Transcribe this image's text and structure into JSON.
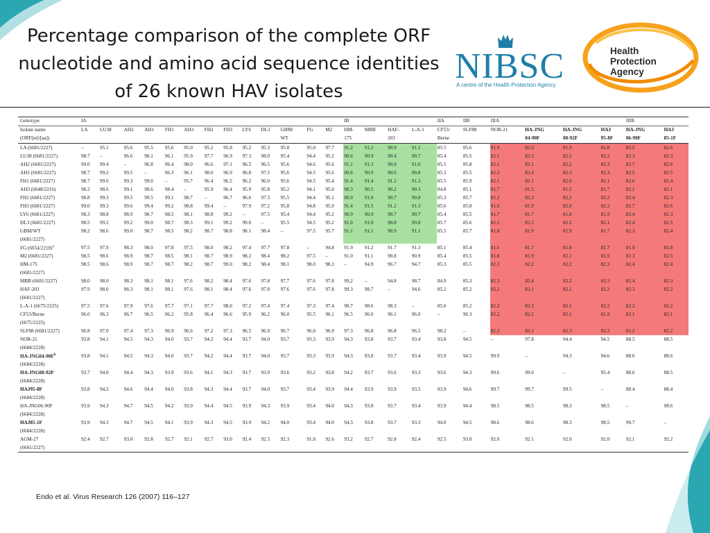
{
  "slide": {
    "title": "Percentage comparison of the complete ORF nucleotide and amino acid sequence identities of 26 known HAV isolates",
    "credit": "Endo et al. Virus Research 126 (2007) 116–127"
  },
  "logos": {
    "nibsc": {
      "word": "NIBSC",
      "tagline": "A centre of the Health Protection Agency"
    },
    "hpa": {
      "line1": "Health",
      "line2": "Protection",
      "line3": "Agency"
    }
  },
  "colors": {
    "green": "#a8e0a0",
    "red": "#f47a7a",
    "nibsc_blue": "#1e7fa8",
    "teal": "#2aa7b0"
  },
  "table": {
    "genotype_label": "Genotype",
    "isolate_label": "Isolate name",
    "orf_label": "(ORF[nt]/[aa])",
    "groups": [
      "IA",
      "IB",
      "IIA",
      "IIB",
      "IIIA",
      "IIIB"
    ],
    "cols": [
      "LA",
      "LU38",
      "AH2",
      "AH1",
      "FH1",
      "AH3",
      "FH2",
      "FH3",
      "LY6",
      "DL3",
      "GBM/",
      "FG",
      "M2",
      "HM-",
      "MBB",
      "HAF-",
      "L-A-1",
      "CF53/",
      "SLF88",
      "NOR-21",
      "HA-JNG",
      "HA-JNG",
      "HAJ",
      "HA-JNG",
      "HAJ"
    ],
    "cols2": [
      "",
      "",
      "",
      "",
      "",
      "",
      "",
      "",
      "",
      "",
      "WT",
      "",
      "",
      "175",
      "",
      "203",
      "",
      "Berne",
      "",
      "",
      "04-90F",
      "08-92F",
      "95-8F",
      "06-90F",
      "85-1F"
    ],
    "rows": [
      {
        "name": "LA (6681/2227)",
        "sub": "",
        "v": [
          "–",
          "95.1",
          "95.6",
          "95.5",
          "95.6",
          "95.0",
          "95.2",
          "95.8",
          "95.2",
          "95.3",
          "95.8",
          "95.0",
          "97.7",
          "91.2",
          "91.2",
          "90.9",
          "91.1",
          "85.5",
          "85.6",
          "81.9",
          "82.0",
          "81.9",
          "81.8",
          "82.5",
          "82.6"
        ]
      },
      {
        "name": "LU38 (6681/2227)",
        "sub": "",
        "v": [
          "98.7",
          "–",
          "96.6",
          "98.1",
          "96.1",
          "95.9",
          "97.7",
          "96.9",
          "97.3",
          "98.0",
          "95.4",
          "94.4",
          "95.2",
          "90.6",
          "90.9",
          "90.4",
          "90.7",
          "85.4",
          "85.5",
          "82.1",
          "82.3",
          "82.2",
          "82.2",
          "82.3",
          "82.3"
        ]
      },
      {
        "name": "AH2 (6681/2227)",
        "sub": "",
        "v": [
          "99.0",
          "99.4",
          "–",
          "96.8",
          "96.4",
          "98.0",
          "96.6",
          "97.1",
          "96.5",
          "96.5",
          "95.6",
          "94.6",
          "95.6",
          "91.1",
          "91.3",
          "90.9",
          "91.0",
          "85.5",
          "85.8",
          "82.1",
          "82.1",
          "82.2",
          "82.3",
          "82.7",
          "82.6"
        ]
      },
      {
        "name": "AH1 (6681/2227)",
        "sub": "",
        "v": [
          "98.7",
          "99.2",
          "99.5",
          "–",
          "96.3",
          "96.1",
          "98.0",
          "96.9",
          "96.8",
          "97.5",
          "95.6",
          "94.5",
          "95.6",
          "90.8",
          "90.9",
          "90.6",
          "90.8",
          "85.3",
          "85.5",
          "82.2",
          "82.4",
          "82.3",
          "82.3",
          "82.5",
          "82.5"
        ]
      },
      {
        "name": "FH1 (6681/2227)",
        "sub": "",
        "v": [
          "98.7",
          "99.0",
          "99.3",
          "99.0",
          "–",
          "95.7",
          "96.4",
          "96.5",
          "96.2",
          "96.0",
          "95.6",
          "94.5",
          "95.4",
          "91.4",
          "91.4",
          "91.2",
          "91.3",
          "85.5",
          "85.9",
          "82.1",
          "82.1",
          "82.0",
          "82.1",
          "82.6",
          "82.4"
        ]
      },
      {
        "name": "AH3 (6648/2216)",
        "sub": "",
        "v": [
          "98.2",
          "98.6",
          "99.1",
          "98.6",
          "98.4",
          "–",
          "95.9",
          "96.4",
          "95.9",
          "95.8",
          "95.2",
          "94.1",
          "95.0",
          "90.3",
          "90.5",
          "90.2",
          "90.3",
          "84.8",
          "85.1",
          "81.7",
          "81.5",
          "81.5",
          "81.7",
          "82.1",
          "82.1"
        ]
      },
      {
        "name": "FH2 (6681/2227)",
        "sub": "",
        "v": [
          "98.8",
          "99.3",
          "99.5",
          "99.5",
          "99.1",
          "98.7",
          "–",
          "96.7",
          "96.6",
          "97.3",
          "95.5",
          "94.4",
          "95.1",
          "90.9",
          "91.0",
          "90.7",
          "90.8",
          "85.3",
          "85.7",
          "82.2",
          "82.3",
          "82.2",
          "82.2",
          "82.4",
          "82.3"
        ]
      },
      {
        "name": "FH3 (6681/2227)",
        "sub": "",
        "v": [
          "99.0",
          "99.3",
          "99.6",
          "99.4",
          "99.2",
          "98.8",
          "99.4",
          "–",
          "97.9",
          "97.2",
          "95.8",
          "94.8",
          "95.9",
          "91.4",
          "91.5",
          "91.2",
          "91.3",
          "85.6",
          "85.8",
          "81.9",
          "81.9",
          "82.0",
          "82.2",
          "82.7",
          "82.6"
        ]
      },
      {
        "name": "LY6 (6681/2227)",
        "sub": "",
        "v": [
          "98.3",
          "98.8",
          "98.9",
          "98.7",
          "98.5",
          "98.1",
          "98.8",
          "99.2",
          "–",
          "97.5",
          "95.4",
          "94.4",
          "95.2",
          "90.9",
          "90.9",
          "90.7",
          "90.7",
          "85.4",
          "85.5",
          "81.7",
          "81.7",
          "81.8",
          "81.9",
          "82.4",
          "82.3"
        ]
      },
      {
        "name": "DL3 (6681/2227)",
        "sub": "",
        "v": [
          "98.5",
          "99.2",
          "99.2",
          "99.0",
          "98.7",
          "98.3",
          "99.1",
          "99.2",
          "99.0",
          "–",
          "95.5",
          "94.5",
          "95.2",
          "91.0",
          "91.0",
          "90.8",
          "90.8",
          "85.7",
          "85.6",
          "82.2",
          "82.2",
          "82.2",
          "82.1",
          "82.4",
          "82.5"
        ]
      },
      {
        "name": "GBM/WT",
        "sub": "(6681/2227)",
        "v": [
          "98.2",
          "98.6",
          "99.0",
          "98.7",
          "98.5",
          "98.2",
          "98.7",
          "98.8",
          "98.1",
          "98.4",
          "–",
          "97.5",
          "95.7",
          "91.1",
          "91.1",
          "90.9",
          "91.1",
          "85.5",
          "85.7",
          "81.8",
          "81.9",
          "81.9",
          "81.7",
          "82.3",
          "82.4"
        ]
      },
      {
        "name": "FG (6654/2218)",
        "sup": "a",
        "sub": "",
        "v": [
          "97.5",
          "97.9",
          "98.3",
          "98.0",
          "97.8",
          "97.5",
          "98.0",
          "98.2",
          "97.4",
          "97.7",
          "97.8",
          "–",
          "94.8",
          "91.9",
          "91.2",
          "91.7",
          "91.3",
          "85.1",
          "85.4",
          "81.6",
          "81.7",
          "81.8",
          "81.7",
          "81.9",
          "81.8"
        ]
      },
      {
        "name": "M2 (6681/2227)",
        "sub": "",
        "v": [
          "98.5",
          "98.6",
          "98.9",
          "98.7",
          "98.5",
          "98.1",
          "98.7",
          "98.9",
          "98.2",
          "98.4",
          "98.2",
          "97.5",
          "–",
          "91.0",
          "91.1",
          "90.8",
          "90.9",
          "85.4",
          "85.5",
          "81.8",
          "81.9",
          "82.1",
          "81.9",
          "82.3",
          "82.5"
        ]
      },
      {
        "name": "HM-175",
        "sub": "(6681/2227)",
        "v": [
          "98.5",
          "98.6",
          "98.9",
          "98.7",
          "98.7",
          "98.2",
          "98.7",
          "99.0",
          "98.2",
          "98.4",
          "98.1",
          "98.0",
          "98.3",
          "–",
          "94.9",
          "96.7",
          "94.7",
          "85.3",
          "85.5",
          "82.3",
          "82.2",
          "82.2",
          "82.3",
          "82.4",
          "82.4"
        ]
      },
      {
        "name": "MBB (6681/2227)",
        "sub": "",
        "v": [
          "98.0",
          "98.0",
          "98.3",
          "98.1",
          "98.1",
          "97.6",
          "98.2",
          "98.4",
          "97.6",
          "97.8",
          "97.7",
          "97.6",
          "97.8",
          "99.2",
          "–",
          "94.8",
          "98.7",
          "84.9",
          "85.3",
          "82.3",
          "82.4",
          "82.2",
          "82.3",
          "82.4",
          "82.3"
        ]
      },
      {
        "name": "HAF-203",
        "sub": "(6681/2227)",
        "v": [
          "97.9",
          "98.0",
          "98.3",
          "98.1",
          "98.1",
          "97.6",
          "98.1",
          "98.4",
          "97.6",
          "97.8",
          "97.6",
          "97.6",
          "97.8",
          "99.3",
          "98.7",
          "–",
          "94.6",
          "85.2",
          "85.2",
          "82.2",
          "82.1",
          "82.1",
          "82.2",
          "82.3",
          "82.2"
        ]
      },
      {
        "name": "L-A-1 (6675/2225)",
        "sub": "",
        "v": [
          "97.5",
          "97.6",
          "97.9",
          "97.6",
          "97.7",
          "97.1",
          "97.7",
          "98.0",
          "97.2",
          "97.4",
          "97.4",
          "97.3",
          "97.4",
          "98.7",
          "98.6",
          "98.3",
          "–",
          "85.0",
          "85.2",
          "82.2",
          "82.3",
          "82.1",
          "82.2",
          "82.2",
          "82.2"
        ]
      },
      {
        "name": "CF53/Berne",
        "sub": "(6675/2225)",
        "v": [
          "96.0",
          "96.3",
          "96.7",
          "96.5",
          "96.2",
          "95.8",
          "96.4",
          "96.6",
          "95.9",
          "96.2",
          "96.0",
          "95.5",
          "96.1",
          "96.5",
          "96.0",
          "96.1",
          "96.0",
          "–",
          "90.3",
          "82.2",
          "82.2",
          "82.1",
          "81.9",
          "82.1",
          "82.1"
        ]
      },
      {
        "name": "SLF88 (6681/2227)",
        "sub": "",
        "v": [
          "96.8",
          "97.0",
          "97.4",
          "97.3",
          "96.9",
          "96.6",
          "97.2",
          "97.3",
          "96.5",
          "96.9",
          "96.7",
          "96.0",
          "96.9",
          "97.3",
          "96.8",
          "96.8",
          "96.5",
          "98.2",
          "–",
          "82.2",
          "82.2",
          "82.3",
          "82.2",
          "82.2",
          "82.2"
        ]
      },
      {
        "name": "NOR-21",
        "sub": "(6684/2228)",
        "v": [
          "93.8",
          "94.1",
          "94.5",
          "94.3",
          "94.0",
          "93.7",
          "94.2",
          "94.4",
          "93.7",
          "94.0",
          "93.7",
          "93.3",
          "93.9",
          "94.3",
          "93.8",
          "93.7",
          "93.4",
          "93.8",
          "94.5",
          "–",
          "97.8",
          "94.4",
          "94.5",
          "88.5",
          "88.5"
        ]
      },
      {
        "name": "HA-JNG04-90F",
        "sup": "b",
        "bold": true,
        "sub": "(6684/2228)",
        "v": [
          "93.8",
          "94.1",
          "94.5",
          "94.3",
          "94.0",
          "93.7",
          "94.2",
          "94.4",
          "93.7",
          "94.0",
          "93.7",
          "93.3",
          "93.9",
          "94.3",
          "93.8",
          "93.7",
          "93.4",
          "93.9",
          "94.5",
          "99.9",
          "–",
          "94.3",
          "94.6",
          "88.6",
          "88.6"
        ]
      },
      {
        "name": "HA-JNG08-92F",
        "bold": true,
        "sub": "(6684/2228)",
        "v": [
          "93.7",
          "94.0",
          "94.4",
          "94.3",
          "93.9",
          "93.6",
          "94.1",
          "94.3",
          "93.7",
          "93.9",
          "93.6",
          "93.2",
          "93.8",
          "94.2",
          "93.7",
          "93.6",
          "93.3",
          "93.6",
          "94.3",
          "99.6",
          "99.6",
          "–",
          "95.4",
          "88.6",
          "88.5"
        ]
      },
      {
        "name": "HAJ95-8F",
        "bold": true,
        "sub": "(6684/2228)",
        "v": [
          "93.8",
          "94.2",
          "94.6",
          "94.4",
          "94.0",
          "93.8",
          "94.3",
          "94.4",
          "93.7",
          "94.0",
          "93.7",
          "93.4",
          "93.9",
          "94.4",
          "93.9",
          "93.9",
          "93.5",
          "93.9",
          "94.6",
          "99.7",
          "99.7",
          "99.5",
          "–",
          "88.4",
          "88.4"
        ]
      },
      {
        "name": "HA-JNG06-90F",
        "sub": "(6684/2228)",
        "v": [
          "93.9",
          "94.3",
          "94.7",
          "94.5",
          "94.2",
          "93.9",
          "94.4",
          "94.5",
          "93.9",
          "94.3",
          "93.9",
          "93.4",
          "94.0",
          "94.3",
          "93.8",
          "93.7",
          "93.4",
          "93.9",
          "94.4",
          "98.5",
          "98.5",
          "98.3",
          "98.5",
          "–",
          "98.6"
        ]
      },
      {
        "name": "HAJ85-1F",
        "bold": true,
        "sub": "(6684/2228)",
        "v": [
          "93.9",
          "94.3",
          "94.7",
          "94.5",
          "94.1",
          "93.9",
          "94.3",
          "94.5",
          "93.9",
          "94.2",
          "94.0",
          "93.4",
          "94.0",
          "94.3",
          "93.8",
          "93.7",
          "93.3",
          "94.0",
          "94.5",
          "98.6",
          "98.6",
          "98.3",
          "98.5",
          "99.7",
          "–"
        ]
      },
      {
        "name": "AGM-27",
        "sub": "(6681/2227)",
        "v": [
          "92.4",
          "92.7",
          "93.0",
          "92.8",
          "92.7",
          "92.1",
          "92.7",
          "93.0",
          "92.4",
          "92.5",
          "92.3",
          "91.8",
          "92.6",
          "93.2",
          "92.7",
          "92.8",
          "92.4",
          "92.5",
          "93.0",
          "92.0",
          "92.1",
          "92.0",
          "92.0",
          "92.1",
          "92.2"
        ]
      }
    ]
  }
}
